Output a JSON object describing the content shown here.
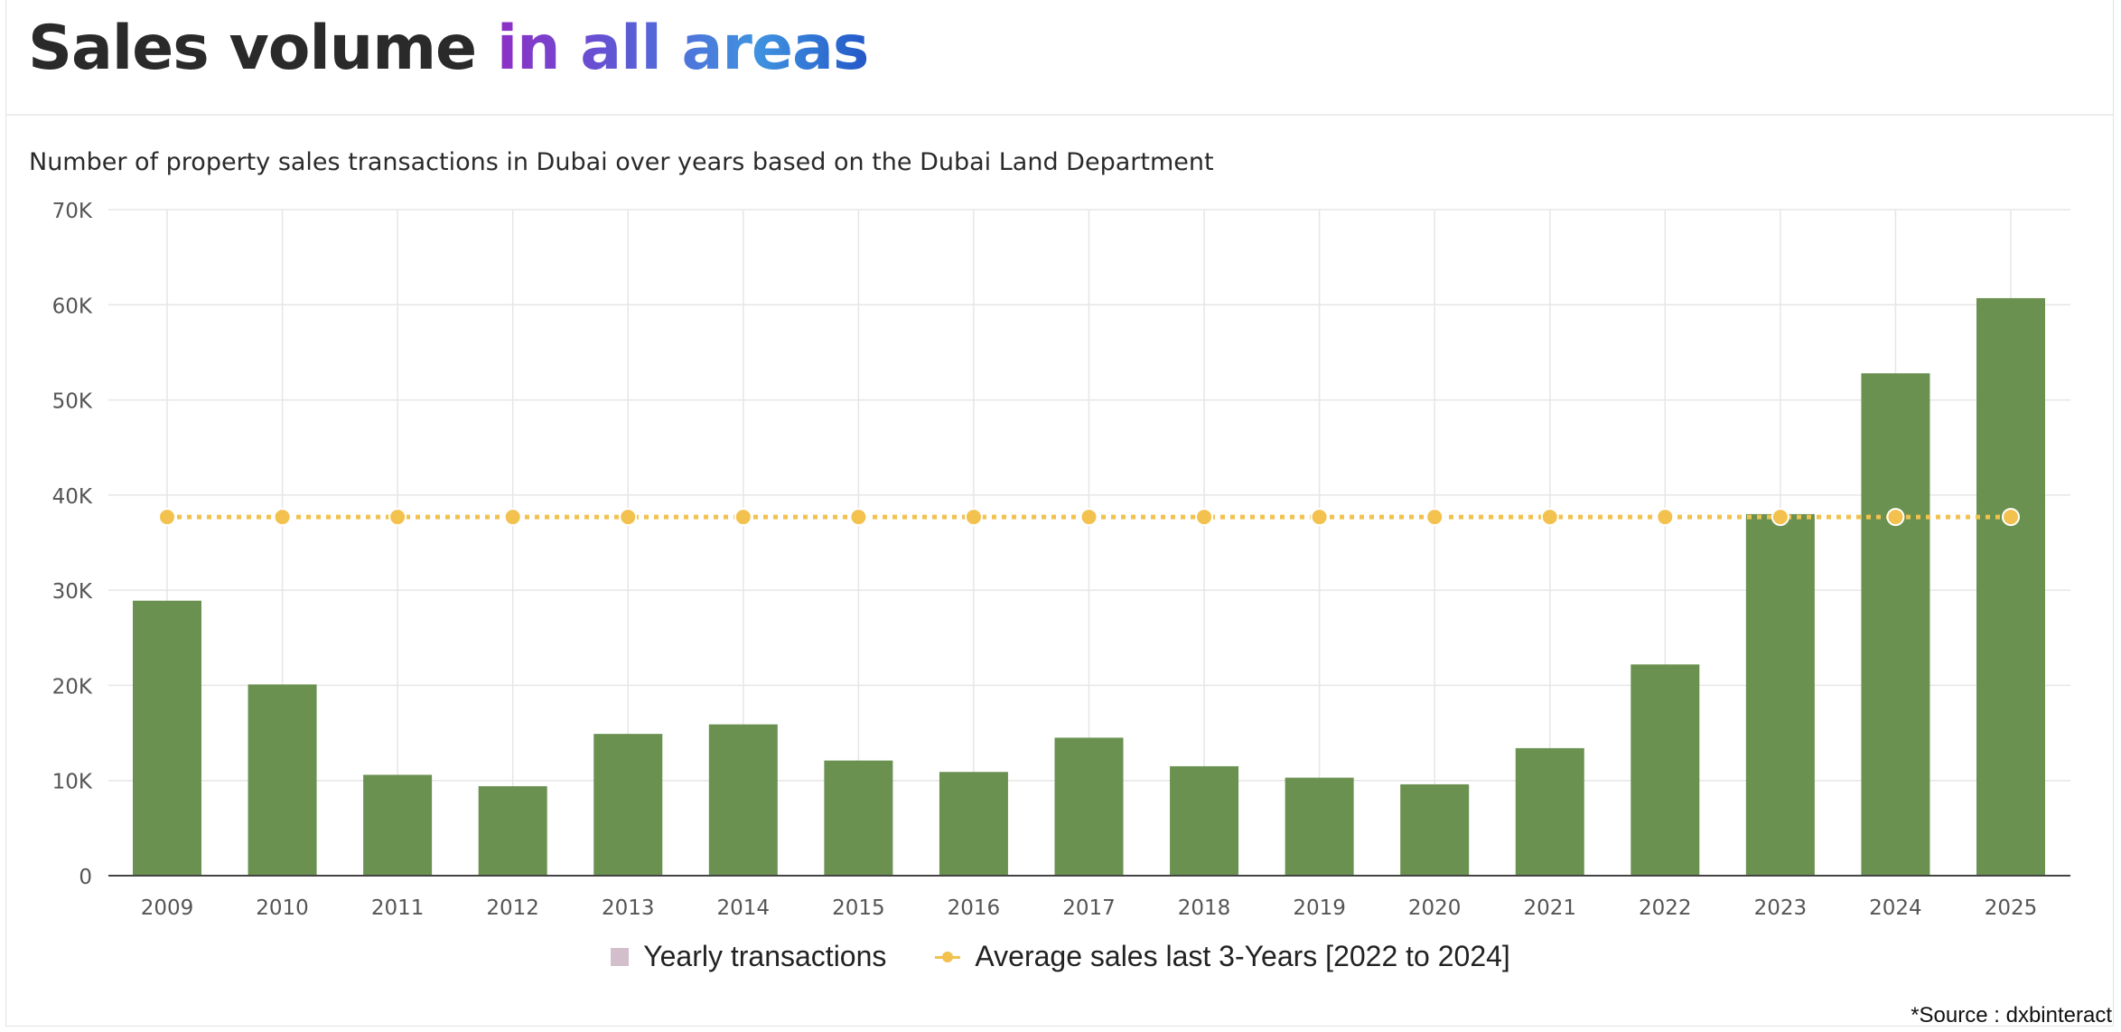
{
  "header": {
    "title_plain": "Sales volume",
    "title_highlight": "in all areas"
  },
  "subtitle": "Number of property sales transactions in Dubai over years based on the Dubai Land Department",
  "legend": {
    "bars_label": "Yearly transactions",
    "line_label": "Average sales last 3-Years [2022 to 2024]"
  },
  "source": "*Source : dxbinteract",
  "colors": {
    "bar": "#6a9150",
    "line": "#f2c14e",
    "legend_bar_swatch": "#d3bfcb",
    "title_gradient": [
      "#8e2fc4",
      "#5b5bd6",
      "#3f93e0",
      "#2458c8"
    ]
  },
  "chart_data": {
    "type": "bar",
    "title": "",
    "xlabel": "",
    "ylabel": "",
    "categories": [
      "2009",
      "2010",
      "2011",
      "2012",
      "2013",
      "2014",
      "2015",
      "2016",
      "2017",
      "2018",
      "2019",
      "2020",
      "2021",
      "2022",
      "2023",
      "2024",
      "2025"
    ],
    "series": [
      {
        "name": "Yearly transactions",
        "type": "bar",
        "values": [
          28900,
          20100,
          10600,
          9400,
          14900,
          15900,
          12100,
          10900,
          14500,
          11500,
          10300,
          9600,
          13400,
          22200,
          38000,
          52800,
          60700
        ]
      },
      {
        "name": "Average sales last 3-Years [2022 to 2024]",
        "type": "line",
        "style": "dotted",
        "values": [
          37700,
          37700,
          37700,
          37700,
          37700,
          37700,
          37700,
          37700,
          37700,
          37700,
          37700,
          37700,
          37700,
          37700,
          37700,
          37700,
          37700
        ]
      }
    ],
    "ylim": [
      0,
      70000
    ],
    "yticks": [
      0,
      10000,
      20000,
      30000,
      40000,
      50000,
      60000,
      70000
    ],
    "ytick_labels": [
      "0",
      "10K",
      "20K",
      "30K",
      "40K",
      "50K",
      "60K",
      "70K"
    ],
    "grid": true,
    "legend_position": "bottom-center"
  }
}
